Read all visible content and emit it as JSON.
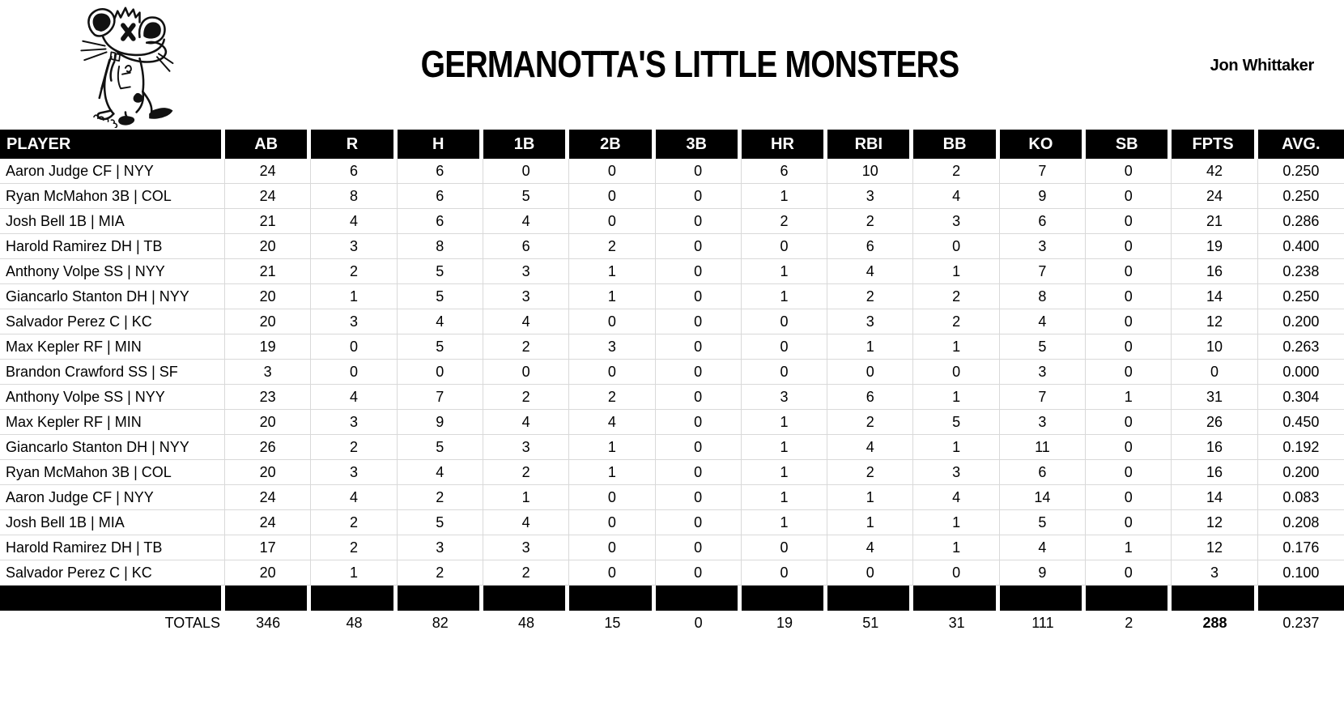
{
  "header": {
    "team_name": "GERMANOTTA'S LITTLE MONSTERS",
    "owner_name": "Jon Whittaker",
    "logo_icon": "rat-mascot-sketch"
  },
  "colors": {
    "header_bg": "#000000",
    "header_text": "#ffffff",
    "gridline": "#d9d9d9",
    "body_text": "#000000"
  },
  "table": {
    "columns": [
      "PLAYER",
      "AB",
      "R",
      "H",
      "1B",
      "2B",
      "3B",
      "HR",
      "RBI",
      "BB",
      "KO",
      "SB",
      "FPTS",
      "AVG."
    ],
    "rows": [
      [
        "Aaron Judge CF | NYY",
        "24",
        "6",
        "6",
        "0",
        "0",
        "0",
        "6",
        "10",
        "2",
        "7",
        "0",
        "42",
        "0.250"
      ],
      [
        "Ryan McMahon 3B | COL",
        "24",
        "8",
        "6",
        "5",
        "0",
        "0",
        "1",
        "3",
        "4",
        "9",
        "0",
        "24",
        "0.250"
      ],
      [
        "Josh Bell 1B | MIA",
        "21",
        "4",
        "6",
        "4",
        "0",
        "0",
        "2",
        "2",
        "3",
        "6",
        "0",
        "21",
        "0.286"
      ],
      [
        "Harold Ramirez DH | TB",
        "20",
        "3",
        "8",
        "6",
        "2",
        "0",
        "0",
        "6",
        "0",
        "3",
        "0",
        "19",
        "0.400"
      ],
      [
        "Anthony Volpe SS | NYY",
        "21",
        "2",
        "5",
        "3",
        "1",
        "0",
        "1",
        "4",
        "1",
        "7",
        "0",
        "16",
        "0.238"
      ],
      [
        "Giancarlo Stanton DH | NYY",
        "20",
        "1",
        "5",
        "3",
        "1",
        "0",
        "1",
        "2",
        "2",
        "8",
        "0",
        "14",
        "0.250"
      ],
      [
        "Salvador Perez C | KC",
        "20",
        "3",
        "4",
        "4",
        "0",
        "0",
        "0",
        "3",
        "2",
        "4",
        "0",
        "12",
        "0.200"
      ],
      [
        "Max Kepler RF | MIN",
        "19",
        "0",
        "5",
        "2",
        "3",
        "0",
        "0",
        "1",
        "1",
        "5",
        "0",
        "10",
        "0.263"
      ],
      [
        "Brandon Crawford SS | SF",
        "3",
        "0",
        "0",
        "0",
        "0",
        "0",
        "0",
        "0",
        "0",
        "3",
        "0",
        "0",
        "0.000"
      ],
      [
        "Anthony Volpe SS | NYY",
        "23",
        "4",
        "7",
        "2",
        "2",
        "0",
        "3",
        "6",
        "1",
        "7",
        "1",
        "31",
        "0.304"
      ],
      [
        "Max Kepler RF | MIN",
        "20",
        "3",
        "9",
        "4",
        "4",
        "0",
        "1",
        "2",
        "5",
        "3",
        "0",
        "26",
        "0.450"
      ],
      [
        "Giancarlo Stanton DH | NYY",
        "26",
        "2",
        "5",
        "3",
        "1",
        "0",
        "1",
        "4",
        "1",
        "11",
        "0",
        "16",
        "0.192"
      ],
      [
        "Ryan McMahon 3B | COL",
        "20",
        "3",
        "4",
        "2",
        "1",
        "0",
        "1",
        "2",
        "3",
        "6",
        "0",
        "16",
        "0.200"
      ],
      [
        "Aaron Judge CF | NYY",
        "24",
        "4",
        "2",
        "1",
        "0",
        "0",
        "1",
        "1",
        "4",
        "14",
        "0",
        "14",
        "0.083"
      ],
      [
        "Josh Bell 1B | MIA",
        "24",
        "2",
        "5",
        "4",
        "0",
        "0",
        "1",
        "1",
        "1",
        "5",
        "0",
        "12",
        "0.208"
      ],
      [
        "Harold Ramirez DH | TB",
        "17",
        "2",
        "3",
        "3",
        "0",
        "0",
        "0",
        "4",
        "1",
        "4",
        "1",
        "12",
        "0.176"
      ],
      [
        "Salvador Perez C | KC",
        "20",
        "1",
        "2",
        "2",
        "0",
        "0",
        "0",
        "0",
        "0",
        "9",
        "0",
        "3",
        "0.100"
      ]
    ],
    "totals": [
      "TOTALS",
      "346",
      "48",
      "82",
      "48",
      "15",
      "0",
      "19",
      "51",
      "31",
      "111",
      "2",
      "288",
      "0.237"
    ]
  }
}
